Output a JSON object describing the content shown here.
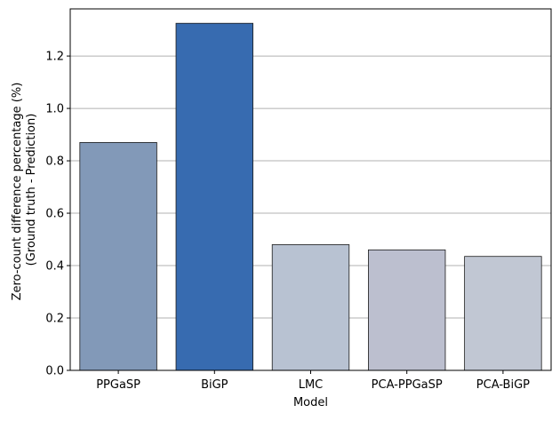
{
  "chart_data": {
    "type": "bar",
    "title": "",
    "xlabel": "Model",
    "ylabel_lines": [
      "Zero-count difference percentage (%)",
      "(Ground truth - Prediction)"
    ],
    "categories": [
      "PPGaSP",
      "BiGP",
      "LMC",
      "PCA-PPGaSP",
      "PCA-BiGP"
    ],
    "values": [
      0.87,
      1.325,
      0.48,
      0.46,
      0.435
    ],
    "colors": [
      "#8299b8",
      "#376bb0",
      "#b8c2d2",
      "#bcbfcf",
      "#c1c7d3"
    ],
    "ylim": [
      0,
      1.38
    ],
    "yticks": [
      0.0,
      0.2,
      0.4,
      0.6,
      0.8,
      1.0,
      1.2
    ],
    "ytick_labels": [
      "0.0",
      "0.2",
      "0.4",
      "0.6",
      "0.8",
      "1.0",
      "1.2"
    ],
    "grid": "y-major",
    "legend": "none"
  }
}
